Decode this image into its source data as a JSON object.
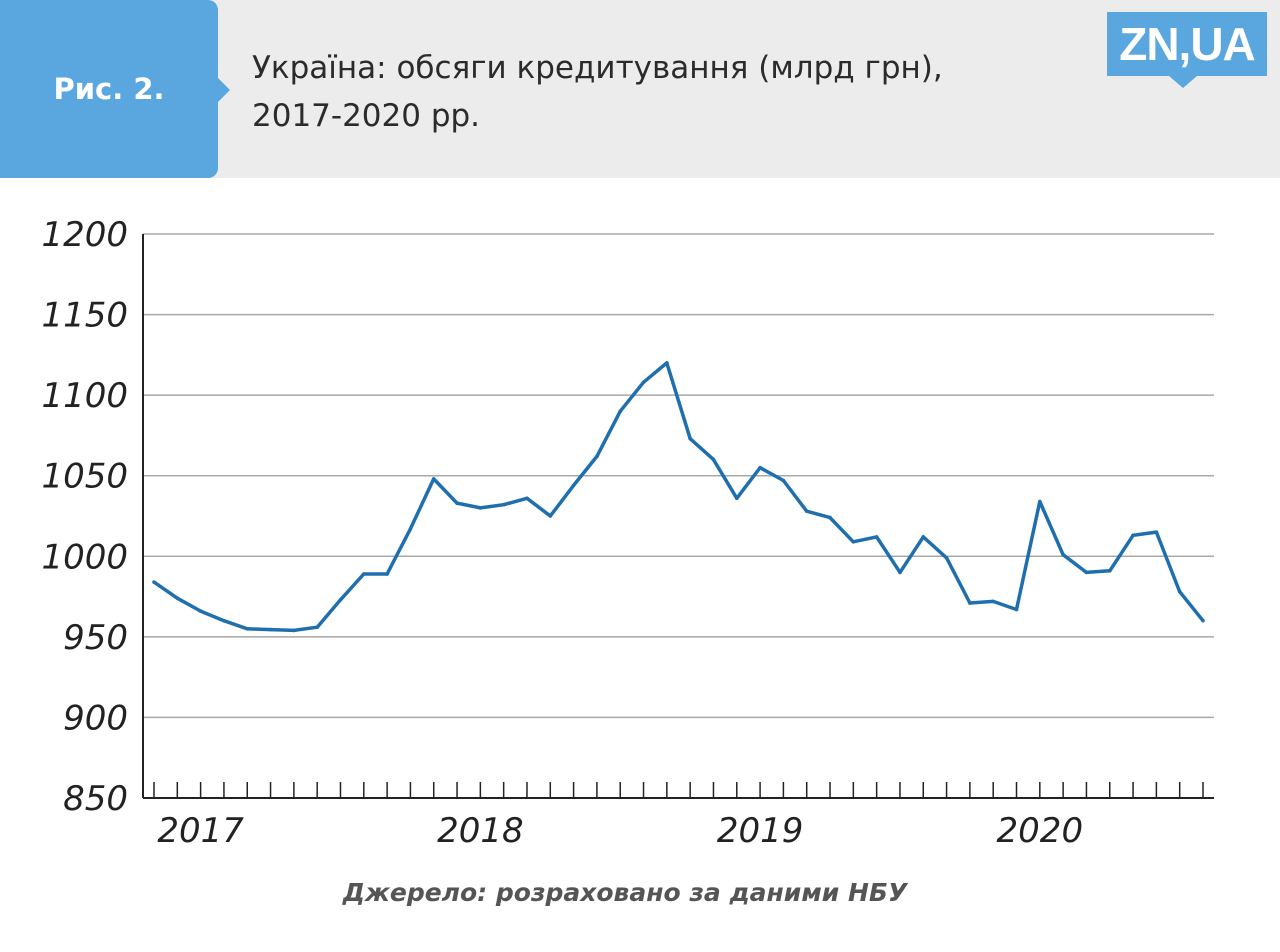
{
  "header": {
    "figure_label": "Рис. 2.",
    "title_line1": "Україна: обсяги кредитування (млрд грн),",
    "title_line2": "2017-2020 рр.",
    "logo": "ZN,UA"
  },
  "colors": {
    "accent": "#5aa6df",
    "line": "#1f6fae",
    "header_bg": "#ececec",
    "grid": "#a8a8a8"
  },
  "chart_data": {
    "type": "line",
    "title": "Україна: обсяги кредитування (млрд грн), 2017-2020 рр.",
    "ylim": [
      850,
      1200
    ],
    "y_ticks": [
      "1200",
      "1150",
      "1100",
      "1050",
      "1000",
      "950",
      "900",
      "850"
    ],
    "x_tick_labels": [
      "2017",
      "2018",
      "2019",
      "2020"
    ],
    "x_start": "2017-01",
    "x_end": "2020-10",
    "grid": true,
    "series": [
      {
        "values": [
          984,
          974,
          966,
          960,
          955,
          954.5,
          954,
          956,
          973,
          989,
          989,
          1017,
          1048,
          1033,
          1030,
          1032,
          1036,
          1025,
          1044,
          1062,
          1090,
          1108,
          1120,
          1073,
          1060,
          1036,
          1055,
          1047,
          1028,
          1024,
          1009,
          1012,
          990,
          1012,
          999,
          971,
          972,
          967,
          1034,
          1001,
          990,
          991,
          1013,
          1015,
          978,
          960
        ]
      }
    ]
  },
  "source": "Джерело: розраховано за даними НБУ"
}
